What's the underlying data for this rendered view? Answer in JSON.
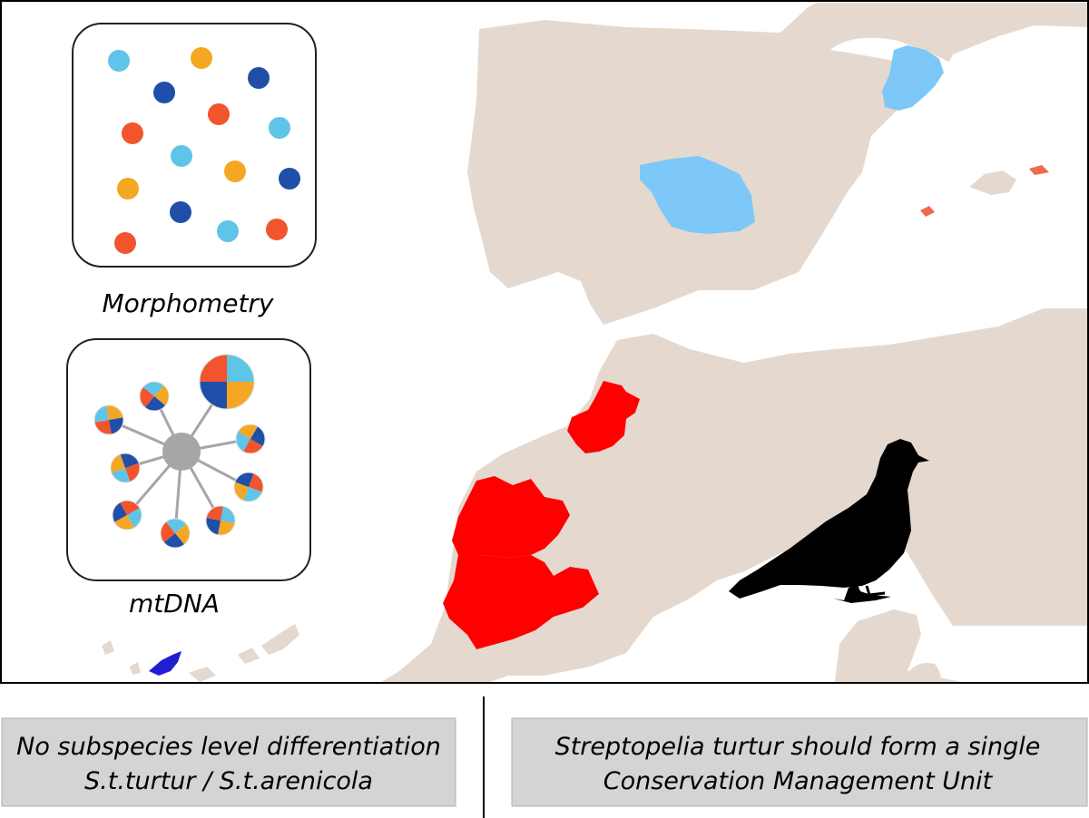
{
  "panels": {
    "morphometry": {
      "label": "Morphometry"
    },
    "mtdna": {
      "label": "mtDNA"
    }
  },
  "conclusions": {
    "left": {
      "line1": "No subspecies level differentiation",
      "line2": "S.t.turtur / S.t.arenicola"
    },
    "right": {
      "line1": "Streptopelia turtur should form a single",
      "line2": "Conservation Management Unit"
    }
  },
  "colors": {
    "land": "#e5d9cf",
    "sampled_europe": "#7dc8f8",
    "sampled_africa": "#ff0000",
    "sampled_canary": "#1f1fd0",
    "dot_light_blue": "#5ec4e8",
    "dot_orange": "#f5a623",
    "dot_dark_blue": "#1f4fa8",
    "dot_red": "#f2542d",
    "hub_grey": "#a6a6a6",
    "bird": "#000000",
    "box_fill": "#d4d4d4"
  },
  "icons": [
    "turtle-dove-silhouette-icon"
  ]
}
